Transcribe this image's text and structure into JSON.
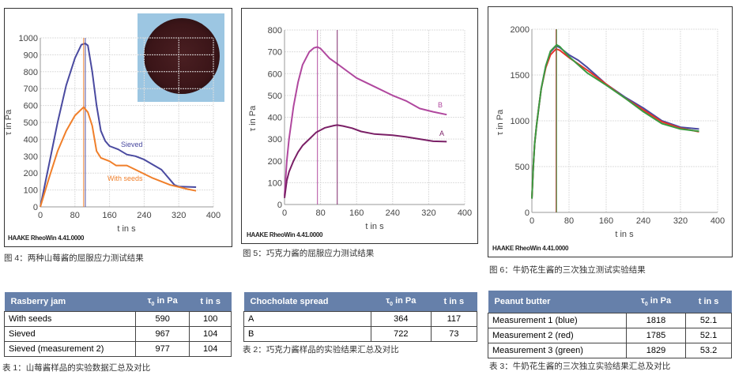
{
  "chart_data": [
    {
      "type": "line",
      "id": "jam",
      "xlabel": "t in s",
      "ylabel": "τ in Pa",
      "xlim": [
        0,
        400
      ],
      "ylim": [
        0,
        1000
      ],
      "xticks": [
        0,
        80,
        160,
        240,
        320,
        400
      ],
      "yticks": [
        0,
        100,
        200,
        300,
        400,
        500,
        600,
        700,
        800,
        900,
        1000
      ],
      "grid": true,
      "software_label": "HAAKE RheoWin 4.41.0000",
      "caption": "图 4：两种山莓酱的屈服应力测试结果",
      "series": [
        {
          "name": "Sieved",
          "color": "#4a4aa0",
          "marker_x": 104,
          "x": [
            0,
            20,
            40,
            60,
            80,
            95,
            104,
            110,
            120,
            130,
            140,
            150,
            160,
            180,
            200,
            220,
            240,
            260,
            280,
            300,
            310,
            320,
            360
          ],
          "y": [
            0,
            250,
            500,
            720,
            880,
            960,
            967,
            955,
            800,
            600,
            450,
            390,
            360,
            340,
            310,
            300,
            280,
            250,
            220,
            160,
            130,
            120,
            117
          ]
        },
        {
          "name": "With seeds",
          "color": "#f07f2a",
          "marker_x": 100,
          "x": [
            0,
            20,
            40,
            60,
            80,
            100,
            110,
            120,
            130,
            140,
            160,
            175,
            200,
            220,
            260,
            300,
            340,
            360
          ],
          "y": [
            0,
            170,
            330,
            450,
            540,
            590,
            560,
            480,
            330,
            290,
            270,
            245,
            245,
            220,
            170,
            130,
            105,
            95
          ]
        }
      ]
    },
    {
      "type": "line",
      "id": "choc",
      "xlabel": "t in s",
      "ylabel": "τ in Pa",
      "xlim": [
        0,
        400
      ],
      "ylim": [
        0,
        800
      ],
      "xticks": [
        0,
        80,
        160,
        240,
        320,
        400
      ],
      "yticks": [
        0,
        100,
        200,
        300,
        400,
        500,
        600,
        700,
        800
      ],
      "grid": true,
      "software_label": "HAAKE RheoWin 4.41.0000",
      "caption": "图 5：巧克力酱的屈服应力测试结果",
      "series": [
        {
          "name": "B",
          "color": "#b0479e",
          "marker_x": 73,
          "x": [
            0,
            5,
            10,
            20,
            30,
            40,
            55,
            65,
            73,
            80,
            100,
            117,
            140,
            160,
            200,
            240,
            270,
            300,
            330,
            360
          ],
          "y": [
            40,
            200,
            300,
            450,
            560,
            640,
            700,
            718,
            722,
            715,
            670,
            645,
            610,
            580,
            540,
            500,
            475,
            440,
            425,
            412
          ]
        },
        {
          "name": "A",
          "color": "#7a1f66",
          "marker_x": 117,
          "x": [
            0,
            5,
            10,
            20,
            30,
            40,
            55,
            70,
            90,
            110,
            117,
            130,
            150,
            170,
            200,
            240,
            270,
            300,
            330,
            360
          ],
          "y": [
            30,
            110,
            150,
            200,
            240,
            270,
            300,
            330,
            352,
            362,
            364,
            360,
            350,
            335,
            323,
            318,
            310,
            300,
            290,
            288
          ]
        }
      ]
    },
    {
      "type": "line",
      "id": "peanut",
      "xlabel": "t in s",
      "ylabel": "τ in Pa",
      "xlim": [
        0,
        400
      ],
      "ylim": [
        0,
        2000
      ],
      "xticks": [
        0,
        80,
        160,
        240,
        320,
        400
      ],
      "yticks": [
        0,
        500,
        1000,
        1500,
        2000
      ],
      "grid": true,
      "software_label": "HAAKE RheoWin 4.41.0000",
      "caption": "图 6：牛奶花生酱的三次独立测试实验结果",
      "series": [
        {
          "name": "Measurement 1 (blue)",
          "color": "#4a4aa0",
          "marker_x": 52.1,
          "x": [
            0,
            3,
            6,
            10,
            15,
            20,
            30,
            40,
            52.1,
            60,
            80,
            100,
            120,
            160,
            200,
            240,
            280,
            320,
            360
          ],
          "y": [
            150,
            500,
            750,
            950,
            1150,
            1350,
            1600,
            1750,
            1818,
            1800,
            1720,
            1660,
            1580,
            1400,
            1260,
            1140,
            1000,
            930,
            910
          ]
        },
        {
          "name": "Measurement 2 (red)",
          "color": "#e8322a",
          "marker_x": 52.1,
          "x": [
            0,
            3,
            6,
            10,
            15,
            20,
            30,
            40,
            52.1,
            60,
            80,
            100,
            120,
            160,
            200,
            240,
            280,
            320,
            360
          ],
          "y": [
            150,
            500,
            750,
            950,
            1150,
            1350,
            1580,
            1720,
            1785,
            1770,
            1690,
            1620,
            1550,
            1400,
            1250,
            1120,
            990,
            920,
            880
          ]
        },
        {
          "name": "Measurement 3 (green)",
          "color": "#3a9a40",
          "marker_x": 53.2,
          "x": [
            0,
            3,
            6,
            10,
            15,
            20,
            30,
            40,
            53.2,
            60,
            80,
            100,
            120,
            160,
            200,
            240,
            280,
            320,
            360
          ],
          "y": [
            150,
            500,
            750,
            950,
            1150,
            1350,
            1600,
            1760,
            1829,
            1810,
            1700,
            1610,
            1520,
            1390,
            1250,
            1100,
            970,
            910,
            885
          ]
        }
      ]
    }
  ],
  "tables": [
    {
      "headers": [
        "Rasberry jam",
        "τ0 in Pa",
        "t in s"
      ],
      "rows": [
        [
          "With seeds",
          "590",
          "100"
        ],
        [
          "Sieved",
          "967",
          "104"
        ],
        [
          "Sieved (measurement 2)",
          "977",
          "104"
        ]
      ],
      "caption": "表 1：山莓酱样品的实验数据汇总及对比"
    },
    {
      "headers": [
        "Chocholate spread",
        "τ0 in Pa",
        "t in s"
      ],
      "rows": [
        [
          "A",
          "364",
          "117"
        ],
        [
          "B",
          "722",
          "73"
        ]
      ],
      "caption": "表 2：巧克力酱样品的实验结果汇总及对比"
    },
    {
      "headers": [
        "Peanut butter",
        "τ0 in Pa",
        "t in s"
      ],
      "rows": [
        [
          "Measurement 1 (blue)",
          "1818",
          "52.1"
        ],
        [
          "Measurement 2 (red)",
          "1785",
          "52.1"
        ],
        [
          "Measurement 3 (green)",
          "1829",
          "53.2"
        ]
      ],
      "caption": "表 3：牛奶花生酱的三次独立实验结果汇总及对比"
    }
  ],
  "photo": {
    "icon": "raspberry-jam-jar-photo"
  }
}
